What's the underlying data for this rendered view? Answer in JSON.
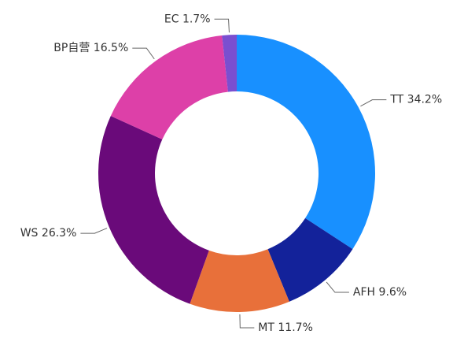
{
  "chart_data": {
    "type": "donut",
    "categories": [
      "TT",
      "AFH",
      "MT",
      "WS",
      "BP自营",
      "EC"
    ],
    "values": [
      34.2,
      9.6,
      11.7,
      26.3,
      16.5,
      1.7
    ],
    "value_labels": [
      "34.2%",
      "9.6%",
      "11.7%",
      "26.3%",
      "16.5%",
      "1.7%"
    ],
    "colors": [
      "#1890ff",
      "#13229a",
      "#e8703a",
      "#6a0a7a",
      "#dd40a8",
      "#7a4fd0"
    ]
  }
}
